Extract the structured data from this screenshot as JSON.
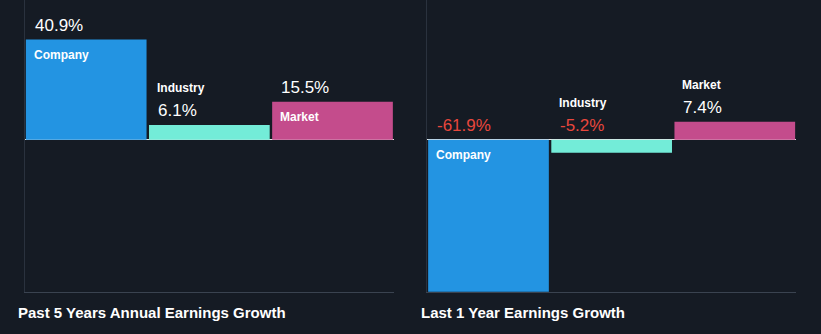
{
  "chart_data": [
    {
      "type": "bar",
      "title": "Past 5 Years Annual Earnings Growth",
      "categories": [
        "Company",
        "Industry",
        "Market"
      ],
      "values": [
        40.9,
        6.1,
        15.5
      ],
      "value_labels": [
        "40.9%",
        "6.1%",
        "15.5%"
      ],
      "colors": [
        "#2394e2",
        "#73ecd8",
        "#c44c8c"
      ],
      "ylim": [
        -62,
        57
      ],
      "data_labels": true,
      "tick_labels": false
    },
    {
      "type": "bar",
      "title": "Last 1 Year Earnings Growth",
      "categories": [
        "Company",
        "Industry",
        "Market"
      ],
      "values": [
        -61.9,
        -5.2,
        7.4
      ],
      "value_labels": [
        "-61.9%",
        "-5.2%",
        "7.4%"
      ],
      "colors": [
        "#2394e2",
        "#73ecd8",
        "#c44c8c"
      ],
      "ylim": [
        -62,
        57
      ],
      "data_labels": true,
      "tick_labels": false
    }
  ]
}
